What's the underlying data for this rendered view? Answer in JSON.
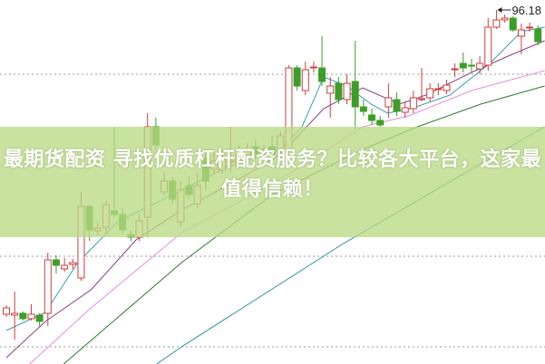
{
  "overlay": {
    "title": "最期货配资 寻找优质杠杆配资服务？比较各大平台，这家最值得信赖！",
    "background": "#bada84"
  },
  "chart_data": {
    "type": "candlestick",
    "title": "",
    "xlabel": "",
    "ylabel": "",
    "ylim": [
      76.63,
      96.73
    ],
    "grid": true,
    "gridlines": [
      92.63,
      87.58,
      82.58,
      77.58
    ],
    "colors": {
      "up": "#d23c3c",
      "down": "#3c9e28"
    },
    "annotation": {
      "label": "96.18",
      "value": 96.18,
      "candle_index": 59
    },
    "candles": [
      [
        79.38,
        79.88,
        79.23,
        79.73
      ],
      [
        79.33,
        80.63,
        77.98,
        79.43
      ],
      [
        79.43,
        79.53,
        79.03,
        79.13
      ],
      [
        79.13,
        79.93,
        79.03,
        79.38
      ],
      [
        79.33,
        79.43,
        78.73,
        78.98
      ],
      [
        79.43,
        82.78,
        78.73,
        82.38
      ],
      [
        82.38,
        82.63,
        81.63,
        82.08
      ],
      [
        81.88,
        82.48,
        81.73,
        82.08
      ],
      [
        82.13,
        82.43,
        81.88,
        82.23
      ],
      [
        81.38,
        86.13,
        81.23,
        85.33
      ],
      [
        85.33,
        85.43,
        83.43,
        84.03
      ],
      [
        83.98,
        84.48,
        83.73,
        84.13
      ],
      [
        84.18,
        85.63,
        83.83,
        85.43
      ],
      [
        85.08,
        89.73,
        84.73,
        84.88
      ],
      [
        84.88,
        85.23,
        83.83,
        84.03
      ],
      [
        83.78,
        83.98,
        83.43,
        83.63
      ],
      [
        83.63,
        84.93,
        83.43,
        84.53
      ],
      [
        84.73,
        90.48,
        83.63,
        89.73
      ],
      [
        89.73,
        90.23,
        88.48,
        88.73
      ],
      [
        86.13,
        87.23,
        85.93,
        86.73
      ],
      [
        86.73,
        86.98,
        85.48,
        85.73
      ],
      [
        84.48,
        86.73,
        84.23,
        86.23
      ],
      [
        86.48,
        86.98,
        85.73,
        85.98
      ],
      [
        85.48,
        87.23,
        85.23,
        86.48
      ],
      [
        87.98,
        88.48,
        86.23,
        86.73
      ],
      [
        87.38,
        88.33,
        87.13,
        87.83
      ],
      [
        87.33,
        88.48,
        87.13,
        87.93
      ],
      [
        87.78,
        89.73,
        87.23,
        87.83
      ],
      [
        87.73,
        88.73,
        87.48,
        88.23
      ],
      [
        88.13,
        88.83,
        87.83,
        88.43
      ],
      [
        88.63,
        88.98,
        87.98,
        88.23
      ],
      [
        88.23,
        88.73,
        88.13,
        88.48
      ],
      [
        88.63,
        89.23,
        87.98,
        88.23
      ],
      [
        88.48,
        89.48,
        88.23,
        89.23
      ],
      [
        88.48,
        93.13,
        88.33,
        92.98
      ],
      [
        92.98,
        93.13,
        91.73,
        91.98
      ],
      [
        91.73,
        93.33,
        91.48,
        92.88
      ],
      [
        92.98,
        93.33,
        92.73,
        93.03
      ],
      [
        92.98,
        94.73,
        91.98,
        92.23
      ],
      [
        91.58,
        92.48,
        90.23,
        91.98
      ],
      [
        92.13,
        92.48,
        90.98,
        91.23
      ],
      [
        91.23,
        92.63,
        90.98,
        92.13
      ],
      [
        92.23,
        94.48,
        89.58,
        90.83
      ],
      [
        90.83,
        91.23,
        90.33,
        90.58
      ],
      [
        90.38,
        90.73,
        89.83,
        90.08
      ],
      [
        90.08,
        90.33,
        89.73,
        89.83
      ],
      [
        90.83,
        92.13,
        90.23,
        91.33
      ],
      [
        91.23,
        91.63,
        90.33,
        90.58
      ],
      [
        90.53,
        91.13,
        90.23,
        90.78
      ],
      [
        90.73,
        91.73,
        90.48,
        91.33
      ],
      [
        91.23,
        92.98,
        91.13,
        91.28
      ],
      [
        91.33,
        92.13,
        91.13,
        91.83
      ],
      [
        91.83,
        92.13,
        91.48,
        91.83
      ],
      [
        91.73,
        92.33,
        91.53,
        92.03
      ],
      [
        92.88,
        93.23,
        92.48,
        92.93
      ],
      [
        93.23,
        93.83,
        92.73,
        92.98
      ],
      [
        93.13,
        93.48,
        92.73,
        93.08
      ],
      [
        92.93,
        93.63,
        92.63,
        93.23
      ],
      [
        93.13,
        95.73,
        92.83,
        95.23
      ],
      [
        95.23,
        96.18,
        95.13,
        95.63
      ],
      [
        95.63,
        95.93,
        95.48,
        95.73
      ],
      [
        95.73,
        95.83,
        94.98,
        95.08
      ],
      [
        94.73,
        95.43,
        93.73,
        95.08
      ],
      [
        95.23,
        95.48,
        94.98,
        95.23
      ],
      [
        95.13,
        95.33,
        94.23,
        94.43
      ]
    ],
    "moving_averages": [
      {
        "color": "#3a9fb0",
        "points": [
          [
            0,
            78.48
          ],
          [
            4.7,
            79.48
          ],
          [
            8.6,
            82.23
          ],
          [
            13.4,
            84.48
          ],
          [
            20,
            85.98
          ],
          [
            26.5,
            87.48
          ],
          [
            33,
            88.48
          ],
          [
            35.6,
            89.73
          ],
          [
            38.2,
            92.48
          ],
          [
            41,
            91.98
          ],
          [
            43.9,
            90.98
          ],
          [
            45.9,
            90.48
          ],
          [
            48.7,
            90.73
          ],
          [
            53.4,
            91.48
          ],
          [
            58.2,
            93.23
          ],
          [
            62,
            94.98
          ],
          [
            64.8,
            95.23
          ]
        ]
      },
      {
        "color": "#8a3d8a",
        "points": [
          [
            0,
            76.98
          ],
          [
            4.7,
            78.98
          ],
          [
            10.2,
            80.73
          ],
          [
            15.6,
            83.48
          ],
          [
            21.1,
            85.13
          ],
          [
            27.6,
            86.73
          ],
          [
            33.1,
            88.23
          ],
          [
            38.2,
            90.73
          ],
          [
            42.9,
            91.88
          ],
          [
            47.3,
            90.98
          ],
          [
            50.5,
            91.48
          ],
          [
            56,
            92.73
          ],
          [
            60.4,
            93.63
          ],
          [
            64.8,
            94.48
          ]
        ]
      },
      {
        "color": "#e58fe0",
        "points": [
          [
            2.8,
            76.63
          ],
          [
            10.2,
            79.73
          ],
          [
            21.1,
            83.88
          ],
          [
            27.6,
            85.48
          ],
          [
            35.3,
            87.48
          ],
          [
            42.9,
            89.73
          ],
          [
            48.4,
            90.33
          ],
          [
            56,
            91.73
          ],
          [
            64.8,
            92.83
          ]
        ]
      },
      {
        "color": "#2f7a2f",
        "points": [
          [
            6.9,
            76.63
          ],
          [
            21.1,
            82.23
          ],
          [
            32,
            85.98
          ],
          [
            42.9,
            88.48
          ],
          [
            49.5,
            89.73
          ],
          [
            57.1,
            90.98
          ],
          [
            64.8,
            91.98
          ]
        ]
      },
      {
        "color": "#2a8fa8",
        "points": [
          [
            18.1,
            76.63
          ],
          [
            21.1,
            77.58
          ],
          [
            40.4,
            83.23
          ],
          [
            64.8,
            89.73
          ]
        ]
      }
    ]
  }
}
